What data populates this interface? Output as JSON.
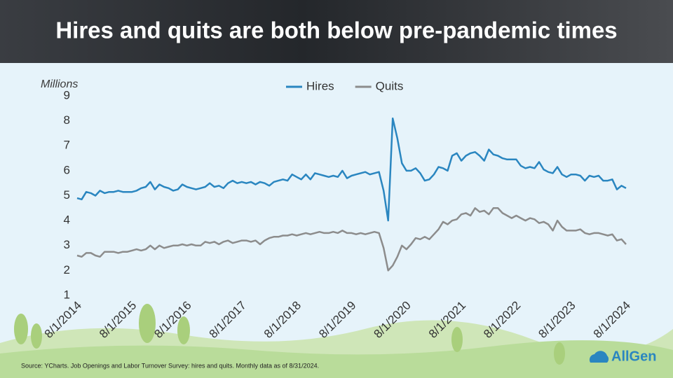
{
  "chart_data": {
    "type": "line",
    "title": "Hires and quits are both below pre-pandemic times",
    "y_label": "Millions",
    "source": "Source: YCharts. Job Openings and Labor Turnover Survey: hires and quits. Monthly data as of 8/31/2024.",
    "brand": "AllGen",
    "x": [
      "8/1/2014",
      "9/1/2014",
      "10/1/2014",
      "11/1/2014",
      "12/1/2014",
      "1/1/2015",
      "2/1/2015",
      "3/1/2015",
      "4/1/2015",
      "5/1/2015",
      "6/1/2015",
      "7/1/2015",
      "8/1/2015",
      "9/1/2015",
      "10/1/2015",
      "11/1/2015",
      "12/1/2015",
      "1/1/2016",
      "2/1/2016",
      "3/1/2016",
      "4/1/2016",
      "5/1/2016",
      "6/1/2016",
      "7/1/2016",
      "8/1/2016",
      "9/1/2016",
      "10/1/2016",
      "11/1/2016",
      "12/1/2016",
      "1/1/2017",
      "2/1/2017",
      "3/1/2017",
      "4/1/2017",
      "5/1/2017",
      "6/1/2017",
      "7/1/2017",
      "8/1/2017",
      "9/1/2017",
      "10/1/2017",
      "11/1/2017",
      "12/1/2017",
      "1/1/2018",
      "2/1/2018",
      "3/1/2018",
      "4/1/2018",
      "5/1/2018",
      "6/1/2018",
      "7/1/2018",
      "8/1/2018",
      "9/1/2018",
      "10/1/2018",
      "11/1/2018",
      "12/1/2018",
      "1/1/2019",
      "2/1/2019",
      "3/1/2019",
      "4/1/2019",
      "5/1/2019",
      "6/1/2019",
      "7/1/2019",
      "8/1/2019",
      "9/1/2019",
      "10/1/2019",
      "11/1/2019",
      "12/1/2019",
      "1/1/2020",
      "2/1/2020",
      "3/1/2020",
      "4/1/2020",
      "5/1/2020",
      "6/1/2020",
      "7/1/2020",
      "8/1/2020",
      "9/1/2020",
      "10/1/2020",
      "11/1/2020",
      "12/1/2020",
      "1/1/2021",
      "2/1/2021",
      "3/1/2021",
      "4/1/2021",
      "5/1/2021",
      "6/1/2021",
      "7/1/2021",
      "8/1/2021",
      "9/1/2021",
      "10/1/2021",
      "11/1/2021",
      "12/1/2021",
      "1/1/2022",
      "2/1/2022",
      "3/1/2022",
      "4/1/2022",
      "5/1/2022",
      "6/1/2022",
      "7/1/2022",
      "8/1/2022",
      "9/1/2022",
      "10/1/2022",
      "11/1/2022",
      "12/1/2022",
      "1/1/2023",
      "2/1/2023",
      "3/1/2023",
      "4/1/2023",
      "5/1/2023",
      "6/1/2023",
      "7/1/2023",
      "8/1/2023",
      "9/1/2023",
      "10/1/2023",
      "11/1/2023",
      "12/1/2023",
      "1/1/2024",
      "2/1/2024",
      "3/1/2024",
      "4/1/2024",
      "5/1/2024",
      "6/1/2024",
      "7/1/2024",
      "8/1/2024"
    ],
    "xticks": [
      "8/1/2014",
      "8/1/2015",
      "8/1/2016",
      "8/1/2017",
      "8/1/2018",
      "8/1/2019",
      "8/1/2020",
      "8/1/2021",
      "8/1/2022",
      "8/1/2023",
      "8/1/2024"
    ],
    "series": [
      {
        "name": "Hires",
        "color": "#2a86c0",
        "values": [
          4.9,
          4.85,
          5.15,
          5.1,
          5.0,
          5.2,
          5.1,
          5.15,
          5.15,
          5.2,
          5.15,
          5.15,
          5.15,
          5.2,
          5.3,
          5.35,
          5.55,
          5.25,
          5.45,
          5.35,
          5.3,
          5.2,
          5.25,
          5.45,
          5.35,
          5.3,
          5.25,
          5.3,
          5.35,
          5.5,
          5.35,
          5.4,
          5.3,
          5.5,
          5.6,
          5.5,
          5.55,
          5.5,
          5.55,
          5.45,
          5.55,
          5.5,
          5.4,
          5.55,
          5.6,
          5.65,
          5.6,
          5.85,
          5.75,
          5.65,
          5.85,
          5.65,
          5.9,
          5.85,
          5.8,
          5.75,
          5.8,
          5.75,
          6.0,
          5.7,
          5.8,
          5.85,
          5.9,
          5.95,
          5.85,
          5.9,
          5.95,
          5.2,
          4.0,
          8.1,
          7.3,
          6.3,
          6.0,
          6.0,
          6.1,
          5.9,
          5.6,
          5.65,
          5.85,
          6.15,
          6.1,
          6.0,
          6.6,
          6.7,
          6.4,
          6.6,
          6.7,
          6.75,
          6.6,
          6.4,
          6.85,
          6.65,
          6.6,
          6.5,
          6.45,
          6.45,
          6.45,
          6.2,
          6.1,
          6.15,
          6.1,
          6.35,
          6.05,
          5.95,
          5.9,
          6.15,
          5.85,
          5.75,
          5.85,
          5.85,
          5.8,
          5.6,
          5.8,
          5.75,
          5.8,
          5.6,
          5.6,
          5.65,
          5.25,
          5.4,
          5.3
        ]
      },
      {
        "name": "Quits",
        "color": "#8c8c8c",
        "values": [
          2.6,
          2.55,
          2.7,
          2.7,
          2.6,
          2.55,
          2.75,
          2.75,
          2.75,
          2.7,
          2.75,
          2.75,
          2.8,
          2.85,
          2.8,
          2.85,
          3.0,
          2.85,
          3.0,
          2.9,
          2.95,
          3.0,
          3.0,
          3.05,
          3.0,
          3.05,
          3.0,
          3.0,
          3.15,
          3.1,
          3.15,
          3.05,
          3.15,
          3.2,
          3.1,
          3.15,
          3.2,
          3.2,
          3.15,
          3.2,
          3.05,
          3.2,
          3.3,
          3.35,
          3.35,
          3.4,
          3.4,
          3.45,
          3.4,
          3.45,
          3.5,
          3.45,
          3.5,
          3.55,
          3.5,
          3.5,
          3.55,
          3.5,
          3.6,
          3.5,
          3.5,
          3.45,
          3.5,
          3.45,
          3.5,
          3.55,
          3.5,
          2.9,
          2.0,
          2.2,
          2.55,
          3.0,
          2.85,
          3.05,
          3.3,
          3.25,
          3.35,
          3.25,
          3.45,
          3.65,
          3.95,
          3.85,
          4.0,
          4.05,
          4.25,
          4.3,
          4.2,
          4.5,
          4.35,
          4.4,
          4.25,
          4.5,
          4.5,
          4.3,
          4.2,
          4.1,
          4.2,
          4.1,
          4.0,
          4.1,
          4.05,
          3.9,
          3.95,
          3.85,
          3.6,
          4.0,
          3.75,
          3.6,
          3.6,
          3.6,
          3.65,
          3.5,
          3.45,
          3.5,
          3.5,
          3.45,
          3.4,
          3.45,
          3.2,
          3.25,
          3.05
        ]
      }
    ],
    "ylim": [
      1,
      9
    ],
    "yticks": [
      1,
      2,
      3,
      4,
      5,
      6,
      7,
      8,
      9
    ],
    "grid": false,
    "legend": "top"
  }
}
